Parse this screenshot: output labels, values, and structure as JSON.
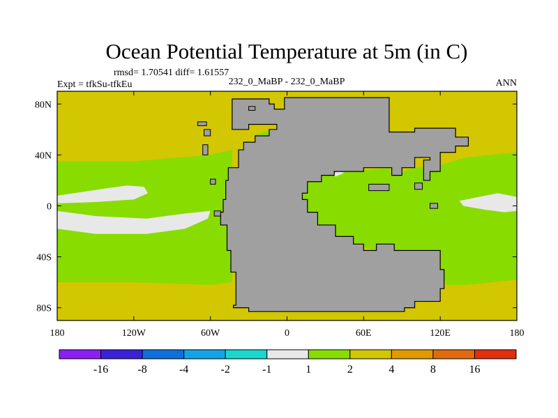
{
  "chart_data": {
    "type": "heatmap",
    "title": "Ocean Potential Temperature at 5m (in C)",
    "stats": "rmsd= 1.70541 diff= 1.61557",
    "experiment": "Expt = tfkSu-tfkEu",
    "case_label": "232_0_MaBP - 232_0_MaBP",
    "period": "ANN",
    "x_range": [
      -180,
      180
    ],
    "y_range": [
      -90,
      90
    ],
    "x_ticks": [
      {
        "value": -180,
        "label": "180"
      },
      {
        "value": -120,
        "label": "120W"
      },
      {
        "value": -60,
        "label": "60W"
      },
      {
        "value": 0,
        "label": "0"
      },
      {
        "value": 60,
        "label": "60E"
      },
      {
        "value": 120,
        "label": "120E"
      },
      {
        "value": 180,
        "label": "180"
      }
    ],
    "y_ticks": [
      {
        "value": 80,
        "label": "80N"
      },
      {
        "value": 40,
        "label": "40N"
      },
      {
        "value": 0,
        "label": "0"
      },
      {
        "value": -40,
        "label": "40S"
      },
      {
        "value": -80,
        "label": "80S"
      }
    ],
    "colorbar": {
      "levels": [
        "-16",
        "-8",
        "-4",
        "-2",
        "-1",
        "1",
        "2",
        "4",
        "8",
        "16"
      ],
      "colors": [
        "#8a1ff2",
        "#3a22d6",
        "#0e70d8",
        "#12a4e6",
        "#1ad6cc",
        "#e8e8e8",
        "#88dc00",
        "#d2c700",
        "#e09a00",
        "#e06a10",
        "#e03010"
      ]
    },
    "region_colors": {
      "land": "#a0a0a0",
      "range_1_2": "#88dc00",
      "range_2_4": "#d2c700",
      "range_neg1_1": "#e8e8e8"
    },
    "land_polygon": [
      [
        -43,
        84
      ],
      [
        -14,
        84
      ],
      [
        -14,
        80
      ],
      [
        -10,
        80
      ],
      [
        -10,
        76
      ],
      [
        -2,
        76
      ],
      [
        -2,
        85
      ],
      [
        80,
        85
      ],
      [
        80,
        58
      ],
      [
        100,
        58
      ],
      [
        100,
        61
      ],
      [
        132,
        61
      ],
      [
        132,
        54
      ],
      [
        142,
        54
      ],
      [
        142,
        47
      ],
      [
        132,
        47
      ],
      [
        132,
        42
      ],
      [
        120,
        42
      ],
      [
        120,
        27
      ],
      [
        112,
        27
      ],
      [
        112,
        20
      ],
      [
        107,
        20
      ],
      [
        107,
        36
      ],
      [
        112,
        36
      ],
      [
        112,
        38
      ],
      [
        100,
        38
      ],
      [
        100,
        30
      ],
      [
        90,
        30
      ],
      [
        90,
        24
      ],
      [
        82,
        24
      ],
      [
        82,
        30
      ],
      [
        60,
        30
      ],
      [
        60,
        27
      ],
      [
        37,
        27
      ],
      [
        37,
        24
      ],
      [
        27,
        24
      ],
      [
        27,
        19
      ],
      [
        16,
        19
      ],
      [
        16,
        10
      ],
      [
        12,
        10
      ],
      [
        12,
        5
      ],
      [
        16,
        5
      ],
      [
        16,
        -5
      ],
      [
        24,
        -5
      ],
      [
        24,
        -15
      ],
      [
        38,
        -15
      ],
      [
        38,
        -24
      ],
      [
        52,
        -24
      ],
      [
        52,
        -30
      ],
      [
        60,
        -30
      ],
      [
        60,
        -35
      ],
      [
        70,
        -35
      ],
      [
        70,
        -30
      ],
      [
        84,
        -30
      ],
      [
        84,
        -35
      ],
      [
        120,
        -35
      ],
      [
        120,
        -50
      ],
      [
        123,
        -50
      ],
      [
        123,
        -65
      ],
      [
        120,
        -65
      ],
      [
        120,
        -75
      ],
      [
        100,
        -75
      ],
      [
        100,
        -80
      ],
      [
        92,
        -80
      ],
      [
        92,
        -83
      ],
      [
        -30,
        -83
      ],
      [
        -30,
        -80
      ],
      [
        -42,
        -80
      ],
      [
        -42,
        -78
      ],
      [
        -40,
        -78
      ],
      [
        -40,
        -52
      ],
      [
        -44,
        -52
      ],
      [
        -44,
        -35
      ],
      [
        -47,
        -35
      ],
      [
        -47,
        -15
      ],
      [
        -52,
        -15
      ],
      [
        -52,
        -5
      ],
      [
        -50,
        -5
      ],
      [
        -50,
        5
      ],
      [
        -48,
        5
      ],
      [
        -48,
        20
      ],
      [
        -46,
        20
      ],
      [
        -46,
        30
      ],
      [
        -38,
        30
      ],
      [
        -38,
        44
      ],
      [
        -34,
        44
      ],
      [
        -34,
        50
      ],
      [
        -25,
        50
      ],
      [
        -25,
        55
      ],
      [
        -14,
        55
      ],
      [
        -14,
        60
      ],
      [
        -8,
        60
      ],
      [
        -8,
        64
      ],
      [
        -30,
        64
      ],
      [
        -30,
        60
      ],
      [
        -43,
        60
      ]
    ]
  }
}
